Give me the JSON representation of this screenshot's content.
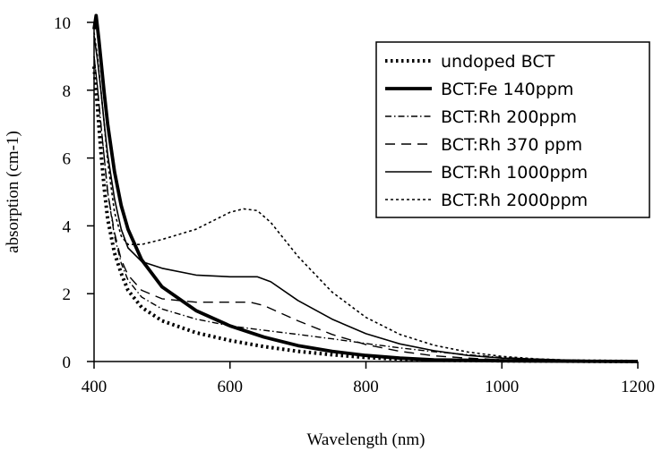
{
  "chart_data": {
    "type": "line",
    "xlabel": "Wavelength (nm)",
    "ylabel": "absorption (cm-1)",
    "xlim": [
      400,
      1200
    ],
    "ylim": [
      0,
      10
    ],
    "xticks": [
      400,
      600,
      800,
      1000,
      1200
    ],
    "yticks": [
      0,
      2,
      4,
      6,
      8,
      10
    ],
    "xtick_labels": [
      "400",
      "600",
      "800",
      "1000",
      "1200"
    ],
    "ytick_labels": [
      "0",
      "2",
      "4",
      "6",
      "8",
      "10"
    ],
    "grid": false,
    "legend_position": "top-right",
    "series": [
      {
        "name": "undoped BCT",
        "style": "dotted-thick",
        "points": [
          [
            400,
            8.7
          ],
          [
            405,
            7.5
          ],
          [
            410,
            6.2
          ],
          [
            415,
            5.1
          ],
          [
            420,
            4.2
          ],
          [
            430,
            3.2
          ],
          [
            440,
            2.6
          ],
          [
            450,
            2.1
          ],
          [
            470,
            1.6
          ],
          [
            500,
            1.2
          ],
          [
            550,
            0.85
          ],
          [
            600,
            0.62
          ],
          [
            650,
            0.44
          ],
          [
            700,
            0.3
          ],
          [
            750,
            0.2
          ],
          [
            800,
            0.12
          ],
          [
            850,
            0.07
          ],
          [
            900,
            0.04
          ],
          [
            1000,
            0.02
          ],
          [
            1100,
            0.01
          ],
          [
            1200,
            0.0
          ]
        ]
      },
      {
        "name": "BCT:Fe 140ppm",
        "style": "solid-thick",
        "points": [
          [
            400,
            9.8
          ],
          [
            403,
            10.2
          ],
          [
            407,
            9.5
          ],
          [
            410,
            8.9
          ],
          [
            415,
            7.9
          ],
          [
            420,
            7.0
          ],
          [
            430,
            5.6
          ],
          [
            440,
            4.6
          ],
          [
            450,
            3.9
          ],
          [
            470,
            3.0
          ],
          [
            500,
            2.2
          ],
          [
            550,
            1.5
          ],
          [
            600,
            1.05
          ],
          [
            650,
            0.72
          ],
          [
            700,
            0.47
          ],
          [
            750,
            0.3
          ],
          [
            800,
            0.18
          ],
          [
            850,
            0.1
          ],
          [
            900,
            0.05
          ],
          [
            1000,
            0.02
          ],
          [
            1100,
            0.01
          ],
          [
            1200,
            0.0
          ]
        ]
      },
      {
        "name": "BCT:Rh 200ppm",
        "style": "dashdot",
        "points": [
          [
            400,
            9.0
          ],
          [
            405,
            8.1
          ],
          [
            410,
            7.0
          ],
          [
            415,
            6.0
          ],
          [
            420,
            5.0
          ],
          [
            430,
            3.7
          ],
          [
            440,
            2.9
          ],
          [
            450,
            2.4
          ],
          [
            470,
            1.9
          ],
          [
            500,
            1.55
          ],
          [
            550,
            1.25
          ],
          [
            600,
            1.05
          ],
          [
            650,
            0.92
          ],
          [
            700,
            0.8
          ],
          [
            750,
            0.67
          ],
          [
            800,
            0.53
          ],
          [
            850,
            0.4
          ],
          [
            900,
            0.29
          ],
          [
            950,
            0.2
          ],
          [
            1000,
            0.12
          ],
          [
            1050,
            0.07
          ],
          [
            1100,
            0.04
          ],
          [
            1200,
            0.01
          ]
        ]
      },
      {
        "name": "BCT:Rh 370 ppm",
        "style": "dashed-long",
        "points": [
          [
            400,
            9.0
          ],
          [
            405,
            8.1
          ],
          [
            410,
            7.0
          ],
          [
            415,
            6.0
          ],
          [
            420,
            5.0
          ],
          [
            430,
            3.8
          ],
          [
            440,
            3.0
          ],
          [
            450,
            2.55
          ],
          [
            470,
            2.1
          ],
          [
            500,
            1.85
          ],
          [
            550,
            1.75
          ],
          [
            600,
            1.75
          ],
          [
            630,
            1.75
          ],
          [
            650,
            1.65
          ],
          [
            700,
            1.2
          ],
          [
            750,
            0.8
          ],
          [
            800,
            0.5
          ],
          [
            850,
            0.3
          ],
          [
            900,
            0.17
          ],
          [
            950,
            0.1
          ],
          [
            1000,
            0.05
          ],
          [
            1100,
            0.02
          ],
          [
            1200,
            0.0
          ]
        ]
      },
      {
        "name": "BCT:Rh 1000ppm",
        "style": "solid-thin",
        "points": [
          [
            400,
            9.6
          ],
          [
            405,
            8.9
          ],
          [
            410,
            8.0
          ],
          [
            415,
            7.0
          ],
          [
            420,
            6.1
          ],
          [
            430,
            4.8
          ],
          [
            440,
            3.9
          ],
          [
            450,
            3.35
          ],
          [
            470,
            2.95
          ],
          [
            500,
            2.75
          ],
          [
            550,
            2.55
          ],
          [
            600,
            2.5
          ],
          [
            640,
            2.5
          ],
          [
            660,
            2.35
          ],
          [
            700,
            1.8
          ],
          [
            750,
            1.25
          ],
          [
            800,
            0.82
          ],
          [
            850,
            0.52
          ],
          [
            900,
            0.32
          ],
          [
            950,
            0.18
          ],
          [
            1000,
            0.1
          ],
          [
            1100,
            0.04
          ],
          [
            1200,
            0.01
          ]
        ]
      },
      {
        "name": "BCT:Rh 2000ppm",
        "style": "dashed-short",
        "points": [
          [
            400,
            9.7
          ],
          [
            405,
            9.0
          ],
          [
            410,
            8.0
          ],
          [
            415,
            7.0
          ],
          [
            420,
            5.9
          ],
          [
            430,
            4.4
          ],
          [
            440,
            3.7
          ],
          [
            450,
            3.45
          ],
          [
            470,
            3.45
          ],
          [
            500,
            3.6
          ],
          [
            550,
            3.9
          ],
          [
            600,
            4.4
          ],
          [
            620,
            4.5
          ],
          [
            640,
            4.45
          ],
          [
            660,
            4.1
          ],
          [
            700,
            3.1
          ],
          [
            750,
            2.05
          ],
          [
            800,
            1.3
          ],
          [
            850,
            0.8
          ],
          [
            900,
            0.48
          ],
          [
            950,
            0.28
          ],
          [
            1000,
            0.15
          ],
          [
            1050,
            0.08
          ],
          [
            1100,
            0.04
          ],
          [
            1200,
            0.01
          ]
        ]
      }
    ]
  }
}
